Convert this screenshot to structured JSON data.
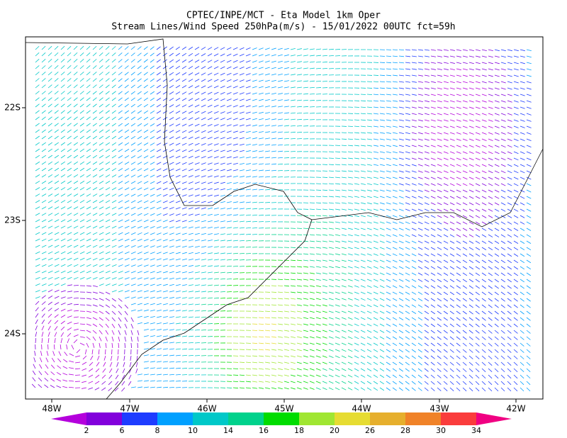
{
  "header": {
    "title_line1": "CPTEC/INPE/MCT -  Eta Model 1km Oper",
    "title_line2": "Stream Lines/Wind Speed 250hPa(m/s) - 15/01/2022 00UTC fct=59h"
  },
  "map": {
    "lon_ticks": [
      "48W",
      "47W",
      "46W",
      "45W",
      "44W",
      "43W",
      "42W"
    ],
    "lat_ticks": [
      "22S",
      "23S",
      "24S"
    ]
  },
  "colorbar": {
    "labels": [
      "2",
      "6",
      "8",
      "10",
      "14",
      "16",
      "18",
      "20",
      "26",
      "28",
      "30",
      "34"
    ],
    "colors": [
      "#b400dc",
      "#8200dc",
      "#1e3cff",
      "#00a0ff",
      "#00c8c8",
      "#00d28c",
      "#00dc00",
      "#a0e632",
      "#e6dc32",
      "#e6af2d",
      "#f08228",
      "#fa3c3c",
      "#f00082"
    ]
  }
}
